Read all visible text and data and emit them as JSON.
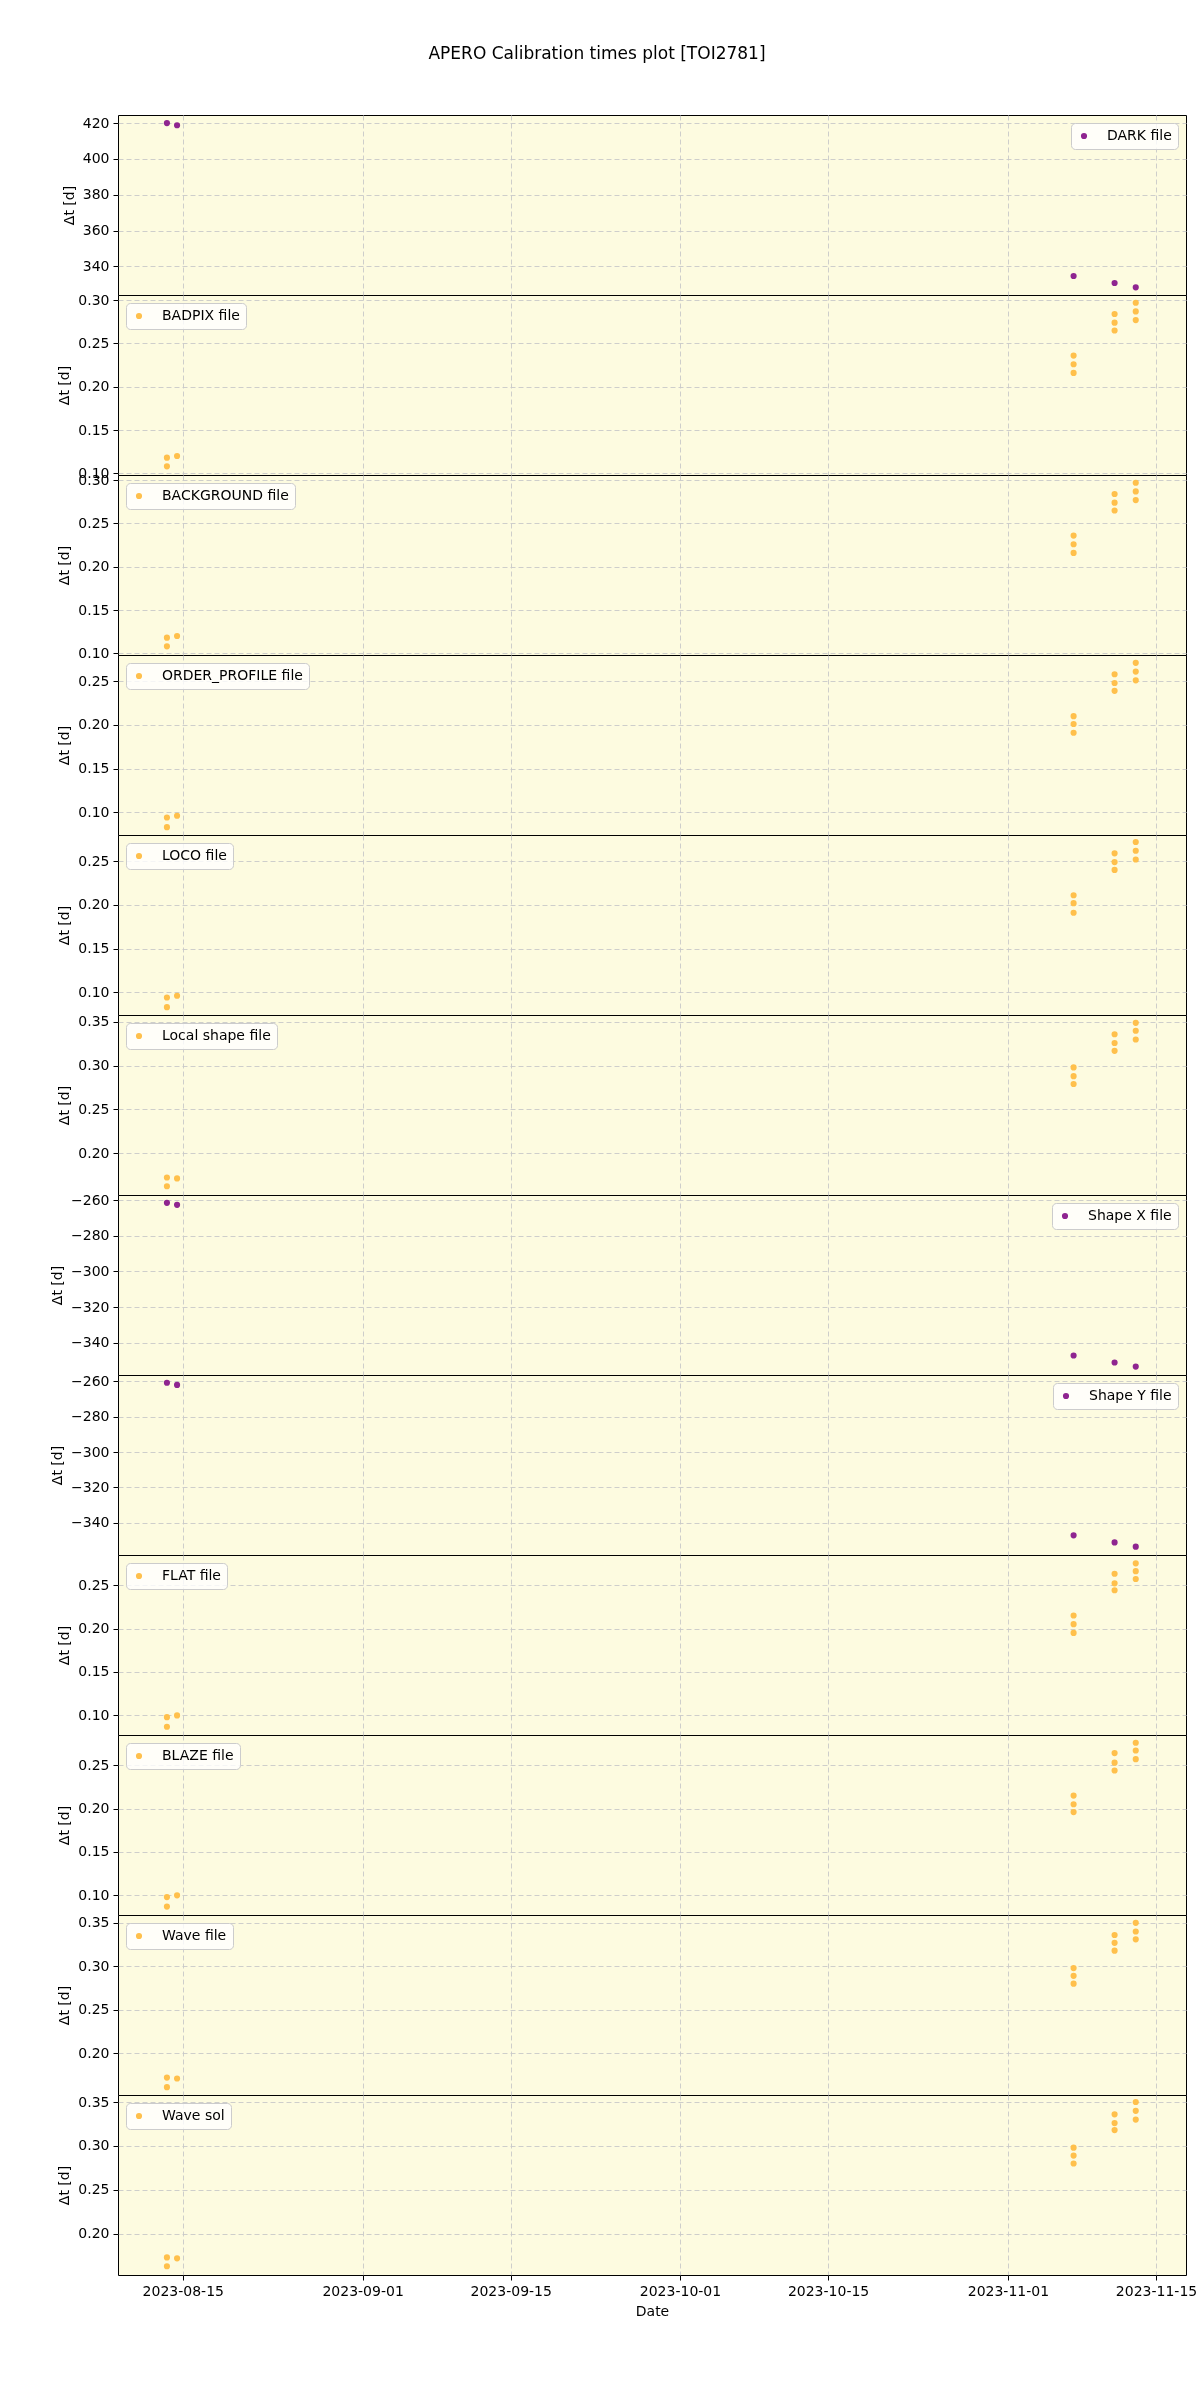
{
  "chart_data": [
    {
      "type": "scatter",
      "title": "APERO Calibration times plot [TOI2781]",
      "ylabel": "Δt [d]",
      "x": [
        "2023-08-13T12:00",
        "2023-08-14T11:00",
        "2023-11-07T05:00",
        "2023-11-11T02:00",
        "2023-11-13T02:00"
      ],
      "series": [
        {
          "name": "DARK file",
          "color": "#8f2590",
          "values": [
            420.0,
            418.8,
            334.6,
            330.7,
            328.3
          ]
        }
      ],
      "xlim": [
        "2023-08-08T21:00",
        "2023-11-17T20:00"
      ],
      "xticks": [
        "2023-08-15",
        "2023-09-01",
        "2023-09-15",
        "2023-10-01",
        "2023-10-15",
        "2023-11-01",
        "2023-11-15"
      ],
      "ylim": [
        324,
        424.5
      ],
      "yticks": [
        340,
        360,
        380,
        400,
        420
      ],
      "grid": true,
      "legend": "top right",
      "marker": "circle",
      "tick_labels": "y"
    },
    {
      "type": "scatter",
      "ylabel": "Δt [d]",
      "x": [
        "2023-08-13T12:00",
        "2023-08-13T12:00",
        "2023-08-14T11:00",
        "2023-11-07T05:00",
        "2023-11-07T05:00",
        "2023-11-07T05:00",
        "2023-11-11T02:00",
        "2023-11-11T02:00",
        "2023-11-11T02:00",
        "2023-11-13T02:00",
        "2023-11-13T02:00",
        "2023-11-13T02:00"
      ],
      "series": [
        {
          "name": "BADPIX file",
          "color": "#ffc04c",
          "values": [
            0.118,
            0.108,
            0.12,
            0.236,
            0.226,
            0.216,
            0.284,
            0.274,
            0.265,
            0.297,
            0.287,
            0.277
          ]
        }
      ],
      "xlim": [
        "2023-08-08T21:00",
        "2023-11-17T20:00"
      ],
      "xticks": [
        "2023-08-15",
        "2023-09-01",
        "2023-09-15",
        "2023-10-01",
        "2023-10-15",
        "2023-11-01",
        "2023-11-15"
      ],
      "ylim": [
        0.098,
        0.306
      ],
      "yticks": [
        {
          "value": 0.1,
          "label": "0.10"
        },
        0.15,
        {
          "value": 0.2,
          "label": "0.20"
        },
        0.25,
        {
          "value": 0.3,
          "label": "0.30"
        }
      ],
      "grid": true,
      "legend": "top left",
      "marker": "circle",
      "tick_labels": "y"
    },
    {
      "type": "scatter",
      "ylabel": "Δt [d]",
      "x": [
        "2023-08-13T12:00",
        "2023-08-13T12:00",
        "2023-08-14T11:00",
        "2023-11-07T05:00",
        "2023-11-07T05:00",
        "2023-11-07T05:00",
        "2023-11-11T02:00",
        "2023-11-11T02:00",
        "2023-11-11T02:00",
        "2023-11-13T02:00",
        "2023-11-13T02:00",
        "2023-11-13T02:00"
      ],
      "series": [
        {
          "name": "BACKGROUND file",
          "color": "#ffc04c",
          "values": [
            0.118,
            0.108,
            0.12,
            0.236,
            0.226,
            0.216,
            0.284,
            0.274,
            0.265,
            0.297,
            0.287,
            0.277
          ]
        }
      ],
      "xlim": [
        "2023-08-08T21:00",
        "2023-11-17T20:00"
      ],
      "xticks": [
        "2023-08-15",
        "2023-09-01",
        "2023-09-15",
        "2023-10-01",
        "2023-10-15",
        "2023-11-01",
        "2023-11-15"
      ],
      "ylim": [
        0.098,
        0.306
      ],
      "yticks": [
        {
          "value": 0.1,
          "label": "0.10"
        },
        0.15,
        {
          "value": 0.2,
          "label": "0.20"
        },
        0.25,
        {
          "value": 0.3,
          "label": "0.30"
        }
      ],
      "grid": true,
      "legend": "top left",
      "marker": "circle",
      "tick_labels": "y"
    },
    {
      "type": "scatter",
      "ylabel": "Δt [d]",
      "x": [
        "2023-08-13T12:00",
        "2023-08-13T12:00",
        "2023-08-14T11:00",
        "2023-11-07T05:00",
        "2023-11-07T05:00",
        "2023-11-07T05:00",
        "2023-11-11T02:00",
        "2023-11-11T02:00",
        "2023-11-11T02:00",
        "2023-11-13T02:00",
        "2023-11-13T02:00",
        "2023-11-13T02:00"
      ],
      "series": [
        {
          "name": "ORDER_PROFILE file",
          "color": "#ffc04c",
          "values": [
            0.094,
            0.083,
            0.096,
            0.21,
            0.201,
            0.191,
            0.258,
            0.248,
            0.239,
            0.271,
            0.261,
            0.251
          ]
        }
      ],
      "xlim": [
        "2023-08-08T21:00",
        "2023-11-17T20:00"
      ],
      "xticks": [
        "2023-08-15",
        "2023-09-01",
        "2023-09-15",
        "2023-10-01",
        "2023-10-15",
        "2023-11-01",
        "2023-11-15"
      ],
      "ylim": [
        0.074,
        0.28
      ],
      "yticks": [
        {
          "value": 0.1,
          "label": "0.10"
        },
        0.15,
        {
          "value": 0.2,
          "label": "0.20"
        },
        0.25
      ],
      "grid": true,
      "legend": "top left",
      "marker": "circle",
      "tick_labels": "y"
    },
    {
      "type": "scatter",
      "ylabel": "Δt [d]",
      "x": [
        "2023-08-13T12:00",
        "2023-08-13T12:00",
        "2023-08-14T11:00",
        "2023-11-07T05:00",
        "2023-11-07T05:00",
        "2023-11-07T05:00",
        "2023-11-11T02:00",
        "2023-11-11T02:00",
        "2023-11-11T02:00",
        "2023-11-13T02:00",
        "2023-11-13T02:00",
        "2023-11-13T02:00"
      ],
      "series": [
        {
          "name": "LOCO file",
          "color": "#ffc04c",
          "values": [
            0.094,
            0.083,
            0.096,
            0.211,
            0.202,
            0.191,
            0.259,
            0.249,
            0.24,
            0.272,
            0.262,
            0.252
          ]
        }
      ],
      "xlim": [
        "2023-08-08T21:00",
        "2023-11-17T20:00"
      ],
      "xticks": [
        "2023-08-15",
        "2023-09-01",
        "2023-09-15",
        "2023-10-01",
        "2023-10-15",
        "2023-11-01",
        "2023-11-15"
      ],
      "ylim": [
        0.074,
        0.28
      ],
      "yticks": [
        {
          "value": 0.1,
          "label": "0.10"
        },
        0.15,
        {
          "value": 0.2,
          "label": "0.20"
        },
        0.25
      ],
      "grid": true,
      "legend": "top left",
      "marker": "circle",
      "tick_labels": "y"
    },
    {
      "type": "scatter",
      "ylabel": "Δt [d]",
      "x": [
        "2023-08-13T12:00",
        "2023-08-13T12:00",
        "2023-08-14T11:00",
        "2023-11-07T05:00",
        "2023-11-07T05:00",
        "2023-11-07T05:00",
        "2023-11-11T02:00",
        "2023-11-11T02:00",
        "2023-11-11T02:00",
        "2023-11-13T02:00",
        "2023-11-13T02:00",
        "2023-11-13T02:00"
      ],
      "series": [
        {
          "name": "Local shape file",
          "color": "#ffc04c",
          "values": [
            0.172,
            0.162,
            0.171,
            0.298,
            0.288,
            0.279,
            0.336,
            0.326,
            0.317,
            0.349,
            0.34,
            0.33
          ]
        }
      ],
      "xlim": [
        "2023-08-08T21:00",
        "2023-11-17T20:00"
      ],
      "xticks": [
        "2023-08-15",
        "2023-09-01",
        "2023-09-15",
        "2023-10-01",
        "2023-10-15",
        "2023-11-01",
        "2023-11-15"
      ],
      "ylim": [
        0.152,
        0.358
      ],
      "yticks": [
        {
          "value": 0.2,
          "label": "0.20"
        },
        0.25,
        {
          "value": 0.3,
          "label": "0.30"
        },
        0.35
      ],
      "grid": true,
      "legend": "top left",
      "marker": "circle",
      "tick_labels": "y"
    },
    {
      "type": "scatter",
      "ylabel": "Δt [d]",
      "x": [
        "2023-08-13T12:00",
        "2023-08-14T11:00",
        "2023-11-07T05:00",
        "2023-11-11T02:00",
        "2023-11-13T02:00"
      ],
      "series": [
        {
          "name": "Shape X file",
          "color": "#8f2590",
          "values": [
            -261.6,
            -262.7,
            -347.1,
            -351.0,
            -353.3
          ]
        }
      ],
      "xlim": [
        "2023-08-08T21:00",
        "2023-11-17T20:00"
      ],
      "xticks": [
        "2023-08-15",
        "2023-09-01",
        "2023-09-15",
        "2023-10-01",
        "2023-10-15",
        "2023-11-01",
        "2023-11-15"
      ],
      "ylim": [
        -358,
        -257.2
      ],
      "yticks": [
        -340,
        -320,
        -300,
        -280,
        -260
      ],
      "grid": true,
      "legend": "top right",
      "marker": "circle",
      "tick_labels": "y"
    },
    {
      "type": "scatter",
      "ylabel": "Δt [d]",
      "x": [
        "2023-08-13T12:00",
        "2023-08-14T11:00",
        "2023-11-07T05:00",
        "2023-11-11T02:00",
        "2023-11-13T02:00"
      ],
      "series": [
        {
          "name": "Shape Y file",
          "color": "#8f2590",
          "values": [
            -260.8,
            -262.0,
            -347.1,
            -351.1,
            -353.5
          ]
        }
      ],
      "xlim": [
        "2023-08-08T21:00",
        "2023-11-17T20:00"
      ],
      "xticks": [
        "2023-08-15",
        "2023-09-01",
        "2023-09-15",
        "2023-10-01",
        "2023-10-15",
        "2023-11-01",
        "2023-11-15"
      ],
      "ylim": [
        -358.2,
        -256.4
      ],
      "yticks": [
        -340,
        -320,
        -300,
        -280,
        -260
      ],
      "grid": true,
      "legend": "top right",
      "marker": "circle",
      "tick_labels": "y"
    },
    {
      "type": "scatter",
      "ylabel": "Δt [d]",
      "x": [
        "2023-08-13T12:00",
        "2023-08-13T12:00",
        "2023-08-14T11:00",
        "2023-11-07T05:00",
        "2023-11-07T05:00",
        "2023-11-07T05:00",
        "2023-11-11T02:00",
        "2023-11-11T02:00",
        "2023-11-11T02:00",
        "2023-11-13T02:00",
        "2023-11-13T02:00",
        "2023-11-13T02:00"
      ],
      "series": [
        {
          "name": "FLAT file",
          "color": "#ffc04c",
          "values": [
            0.098,
            0.087,
            0.1,
            0.215,
            0.205,
            0.195,
            0.263,
            0.252,
            0.244,
            0.275,
            0.266,
            0.257
          ]
        }
      ],
      "xlim": [
        "2023-08-08T21:00",
        "2023-11-17T20:00"
      ],
      "xticks": [
        "2023-08-15",
        "2023-09-01",
        "2023-09-15",
        "2023-10-01",
        "2023-10-15",
        "2023-11-01",
        "2023-11-15"
      ],
      "ylim": [
        0.0775,
        0.2846
      ],
      "yticks": [
        {
          "value": 0.1,
          "label": "0.10"
        },
        0.15,
        {
          "value": 0.2,
          "label": "0.20"
        },
        0.25
      ],
      "grid": true,
      "legend": "top left",
      "marker": "circle",
      "tick_labels": "y"
    },
    {
      "type": "scatter",
      "ylabel": "Δt [d]",
      "x": [
        "2023-08-13T12:00",
        "2023-08-13T12:00",
        "2023-08-14T11:00",
        "2023-11-07T05:00",
        "2023-11-07T05:00",
        "2023-11-07T05:00",
        "2023-11-11T02:00",
        "2023-11-11T02:00",
        "2023-11-11T02:00",
        "2023-11-13T02:00",
        "2023-11-13T02:00",
        "2023-11-13T02:00"
      ],
      "series": [
        {
          "name": "BLAZE file",
          "color": "#ffc04c",
          "values": [
            0.098,
            0.087,
            0.1,
            0.215,
            0.205,
            0.196,
            0.264,
            0.253,
            0.244,
            0.276,
            0.267,
            0.257
          ]
        }
      ],
      "xlim": [
        "2023-08-08T21:00",
        "2023-11-17T20:00"
      ],
      "xticks": [
        "2023-08-15",
        "2023-09-01",
        "2023-09-15",
        "2023-10-01",
        "2023-10-15",
        "2023-11-01",
        "2023-11-15"
      ],
      "ylim": [
        0.0773,
        0.2849
      ],
      "yticks": [
        {
          "value": 0.1,
          "label": "0.10"
        },
        0.15,
        {
          "value": 0.2,
          "label": "0.20"
        },
        0.25
      ],
      "grid": true,
      "legend": "top left",
      "marker": "circle",
      "tick_labels": "y"
    },
    {
      "type": "scatter",
      "ylabel": "Δt [d]",
      "x": [
        "2023-08-13T12:00",
        "2023-08-13T12:00",
        "2023-08-14T11:00",
        "2023-11-07T05:00",
        "2023-11-07T05:00",
        "2023-11-07T05:00",
        "2023-11-11T02:00",
        "2023-11-11T02:00",
        "2023-11-11T02:00",
        "2023-11-13T02:00",
        "2023-11-13T02:00",
        "2023-11-13T02:00"
      ],
      "series": [
        {
          "name": "Wave file",
          "color": "#ffc04c",
          "values": [
            0.172,
            0.161,
            0.171,
            0.298,
            0.289,
            0.28,
            0.336,
            0.327,
            0.318,
            0.35,
            0.34,
            0.331
          ]
        }
      ],
      "xlim": [
        "2023-08-08T21:00",
        "2023-11-17T20:00"
      ],
      "xticks": [
        "2023-08-15",
        "2023-09-01",
        "2023-09-15",
        "2023-10-01",
        "2023-10-15",
        "2023-11-01",
        "2023-11-15"
      ],
      "ylim": [
        0.152,
        0.359
      ],
      "yticks": [
        {
          "value": 0.2,
          "label": "0.20"
        },
        0.25,
        {
          "value": 0.3,
          "label": "0.30"
        },
        0.35
      ],
      "grid": true,
      "legend": "top left",
      "marker": "circle",
      "tick_labels": "y"
    },
    {
      "type": "scatter",
      "xlabel": "Date",
      "ylabel": "Δt [d]",
      "x": [
        "2023-08-13T12:00",
        "2023-08-13T12:00",
        "2023-08-14T11:00",
        "2023-11-07T05:00",
        "2023-11-07T05:00",
        "2023-11-07T05:00",
        "2023-11-11T02:00",
        "2023-11-11T02:00",
        "2023-11-11T02:00",
        "2023-11-13T02:00",
        "2023-11-13T02:00",
        "2023-11-13T02:00"
      ],
      "series": [
        {
          "name": "Wave sol",
          "color": "#ffc04c",
          "values": [
            0.173,
            0.163,
            0.172,
            0.298,
            0.289,
            0.28,
            0.336,
            0.326,
            0.318,
            0.35,
            0.34,
            0.33
          ]
        }
      ],
      "xlim": [
        "2023-08-08T21:00",
        "2023-11-17T20:00"
      ],
      "xticks": [
        "2023-08-15",
        "2023-09-01",
        "2023-09-15",
        "2023-10-01",
        "2023-10-15",
        "2023-11-01",
        "2023-11-15"
      ],
      "ylim": [
        0.153,
        0.358
      ],
      "yticks": [
        {
          "value": 0.2,
          "label": "0.20"
        },
        0.25,
        {
          "value": 0.3,
          "label": "0.30"
        },
        0.35
      ],
      "grid": true,
      "legend": "top left",
      "marker": "circle"
    }
  ]
}
